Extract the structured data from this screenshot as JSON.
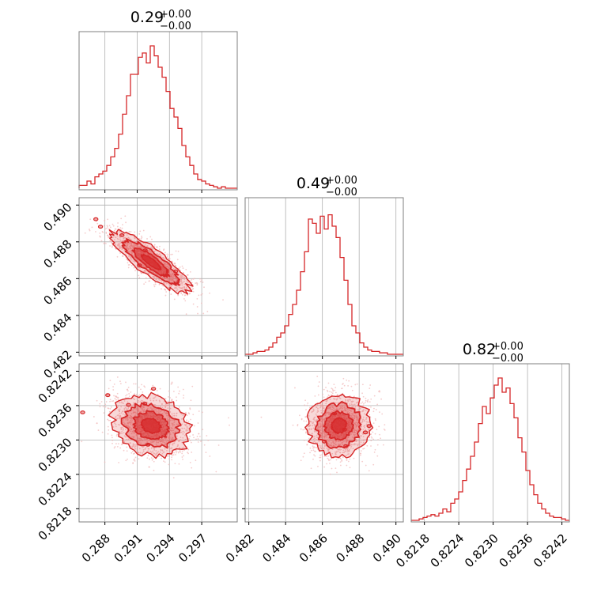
{
  "chart_data": {
    "type": "corner",
    "color": "#d62728",
    "grid": true,
    "parameters": [
      {
        "title": {
          "value": "0.29",
          "plus": "+0.00",
          "minus": "−0.00"
        },
        "range": [
          0.2856,
          0.3003
        ],
        "ticks": [
          "0.288",
          "0.291",
          "0.294",
          "0.297"
        ],
        "tick_values": [
          0.288,
          0.291,
          0.294,
          0.297
        ],
        "mean": 0.2923,
        "sd": 0.0019
      },
      {
        "title": {
          "value": "0.49",
          "plus": "+0.00",
          "minus": "−0.00"
        },
        "range": [
          0.4818,
          0.4904
        ],
        "ticks": [
          "0.482",
          "0.484",
          "0.486",
          "0.488",
          "0.490"
        ],
        "tick_values": [
          0.482,
          0.484,
          0.486,
          0.488,
          0.49
        ],
        "mean": 0.4869,
        "sd": 0.00088
      },
      {
        "title": {
          "value": "0.82",
          "plus": "+0.00",
          "minus": "−0.00"
        },
        "range": [
          0.82157,
          0.82433
        ],
        "ticks": [
          "0.8218",
          "0.8224",
          "0.8230",
          "0.8236",
          "0.8242"
        ],
        "tick_values": [
          0.8218,
          0.8224,
          0.823,
          0.8236,
          0.8242
        ],
        "mean": 0.82325,
        "sd": 0.00028
      }
    ],
    "correlations": {
      "1_0": -0.85,
      "2_0": -0.2,
      "2_1": 0.05
    },
    "histograms": [
      {
        "heights": [
          0.02,
          0.02,
          0.05,
          0.03,
          0.08,
          0.1,
          0.12,
          0.16,
          0.22,
          0.28,
          0.38,
          0.52,
          0.65,
          0.8,
          0.8,
          0.92,
          0.95,
          0.88,
          1.0,
          0.93,
          0.85,
          0.78,
          0.68,
          0.56,
          0.5,
          0.42,
          0.3,
          0.22,
          0.16,
          0.1,
          0.06,
          0.05,
          0.03,
          0.02,
          0.01,
          0.0,
          0.01,
          0.0,
          0.0,
          0.0
        ]
      },
      {
        "heights": [
          0.0,
          0.0,
          0.01,
          0.02,
          0.02,
          0.03,
          0.05,
          0.08,
          0.12,
          0.15,
          0.2,
          0.28,
          0.35,
          0.45,
          0.58,
          0.72,
          0.95,
          0.92,
          0.85,
          0.97,
          0.88,
          0.98,
          0.9,
          0.82,
          0.68,
          0.52,
          0.35,
          0.2,
          0.15,
          0.08,
          0.05,
          0.03,
          0.02,
          0.02,
          0.01,
          0.01,
          0.0,
          0.0,
          0.0,
          0.0
        ]
      },
      {
        "heights": [
          0.0,
          0.0,
          0.01,
          0.02,
          0.03,
          0.04,
          0.03,
          0.05,
          0.08,
          0.06,
          0.12,
          0.15,
          0.2,
          0.28,
          0.36,
          0.45,
          0.55,
          0.68,
          0.8,
          0.75,
          0.86,
          0.95,
          1.0,
          0.9,
          0.93,
          0.82,
          0.72,
          0.58,
          0.48,
          0.35,
          0.25,
          0.18,
          0.12,
          0.08,
          0.05,
          0.03,
          0.02,
          0.02,
          0.01,
          0.0
        ]
      }
    ]
  }
}
